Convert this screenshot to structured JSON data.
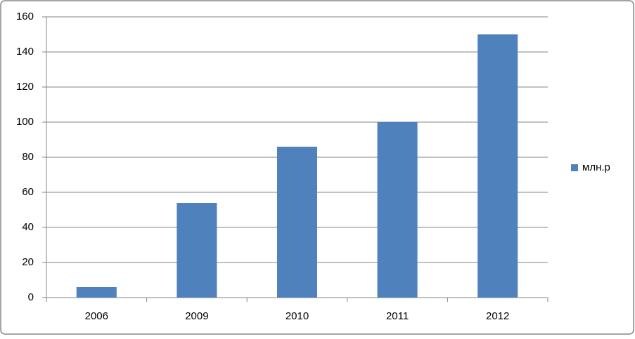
{
  "chart_data": {
    "type": "bar",
    "categories": [
      "2006",
      "2009",
      "2010",
      "2011",
      "2012"
    ],
    "series": [
      {
        "name": "млн.р",
        "color": "#4f81bd",
        "values": [
          6,
          54,
          86,
          100,
          150
        ]
      }
    ],
    "ylim": [
      0,
      160
    ],
    "yticks": [
      0,
      20,
      40,
      60,
      80,
      100,
      120,
      140,
      160
    ],
    "grid": true,
    "legend": "right"
  }
}
